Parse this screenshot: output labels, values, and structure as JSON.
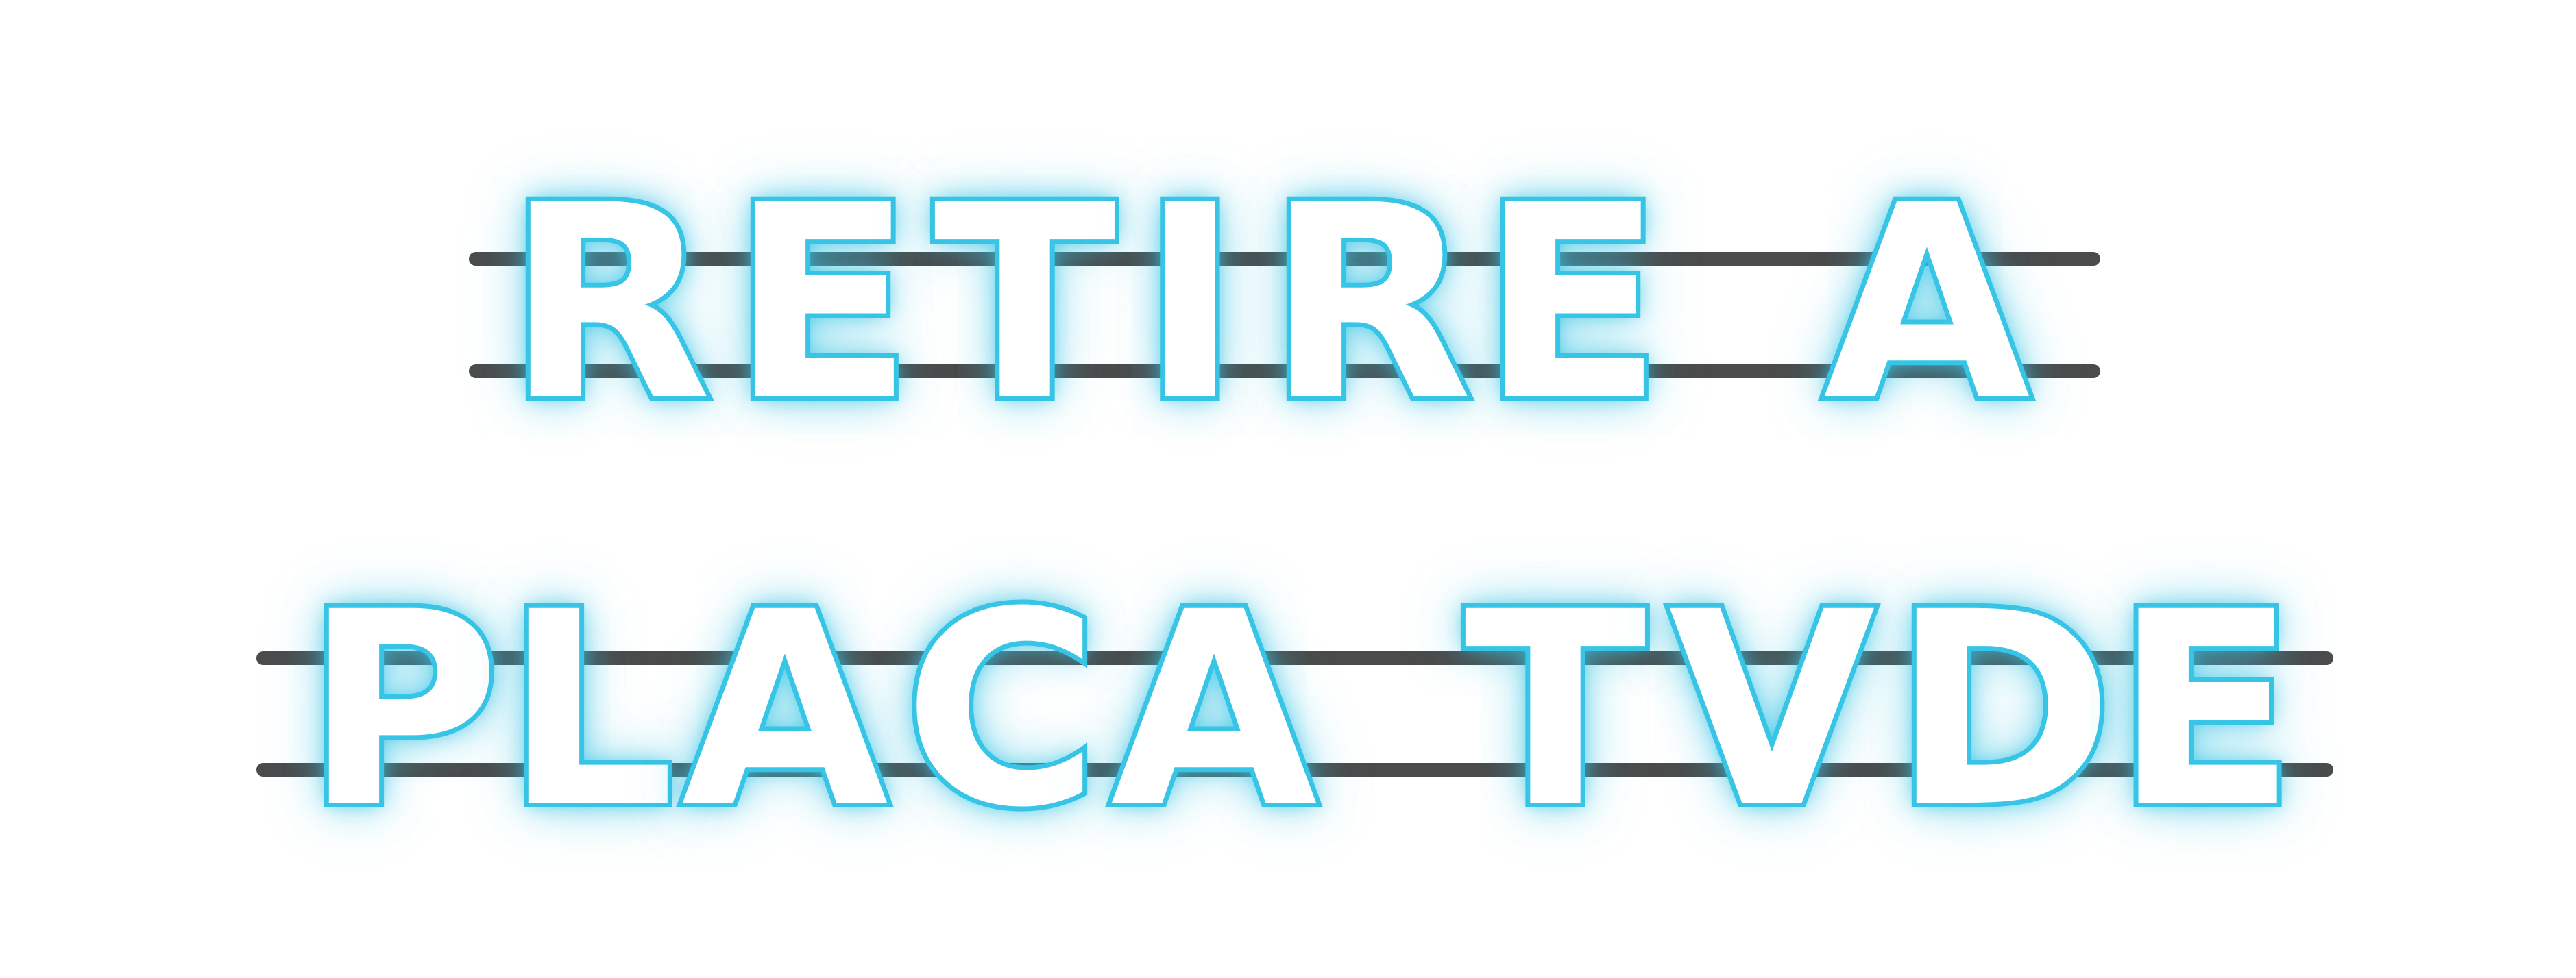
{
  "sign": {
    "line1": {
      "text": "RETIRE A",
      "chars": [
        "R",
        "E",
        "T",
        "I",
        "R",
        "E",
        "A"
      ]
    },
    "line2": {
      "text": "PLACA TVDE",
      "chars": [
        "P",
        "L",
        "A",
        "C",
        "A",
        "T",
        "V",
        "D",
        "E"
      ]
    }
  },
  "colors": {
    "neon": "#39c5e6",
    "tube_fill": "#ffffff",
    "rail": "#4b4b4b",
    "background": "#ffffff"
  }
}
